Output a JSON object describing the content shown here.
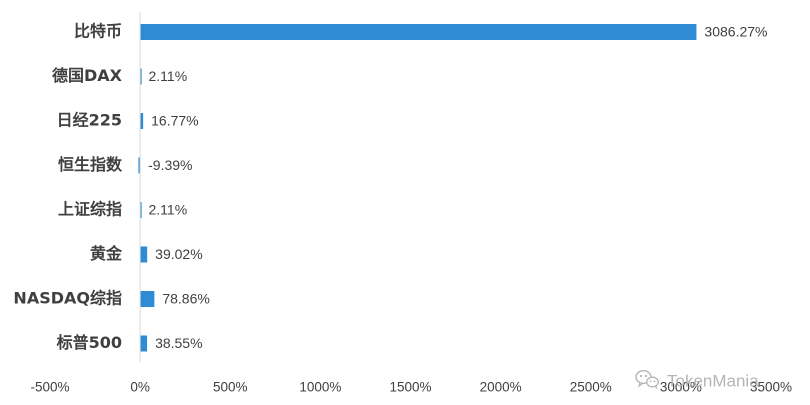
{
  "chart_data": {
    "type": "bar",
    "orientation": "horizontal",
    "categories": [
      "比特币",
      "德国DAX",
      "日经225",
      "恒生指数",
      "上证综指",
      "黄金",
      "NASDAQ综指",
      "标普500"
    ],
    "values": [
      3086.27,
      2.11,
      16.77,
      -9.39,
      2.11,
      39.02,
      78.86,
      38.55
    ],
    "value_labels": [
      "3086.27%",
      "2.11%",
      "16.77%",
      "-9.39%",
      "2.11%",
      "39.02%",
      "78.86%",
      "38.55%"
    ],
    "xlim": [
      -500,
      3500
    ],
    "xticks": [
      -500,
      0,
      500,
      1000,
      1500,
      2000,
      2500,
      3000,
      3500
    ],
    "xtick_labels": [
      "-500%",
      "0%",
      "500%",
      "1000%",
      "1500%",
      "2000%",
      "2500%",
      "3000%",
      "3500%"
    ],
    "bar_color": "#2e8bd4",
    "grid": false,
    "title": "",
    "xlabel": "",
    "ylabel": ""
  },
  "watermark": {
    "text": "TokenMania",
    "icon": "wechat-icon"
  }
}
